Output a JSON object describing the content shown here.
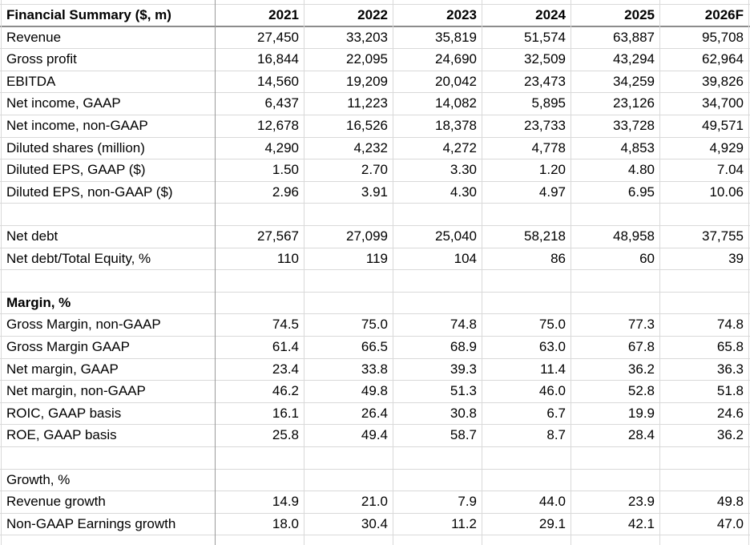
{
  "header": {
    "label": "Financial Summary ($, m)",
    "columns": [
      "2021",
      "2022",
      "2023",
      "2024",
      "2025",
      "2026F"
    ]
  },
  "sections": [
    {
      "rows": [
        {
          "label": "Revenue",
          "values": [
            "27,450",
            "33,203",
            "35,819",
            "51,574",
            "63,887",
            "95,708"
          ]
        },
        {
          "label": "Gross profit",
          "values": [
            "16,844",
            "22,095",
            "24,690",
            "32,509",
            "43,294",
            "62,964"
          ]
        },
        {
          "label": "EBITDA",
          "values": [
            "14,560",
            "19,209",
            "20,042",
            "23,473",
            "34,259",
            "39,826"
          ]
        },
        {
          "label": "Net income, GAAP",
          "values": [
            "6,437",
            "11,223",
            "14,082",
            "5,895",
            "23,126",
            "34,700"
          ]
        },
        {
          "label": "Net income, non-GAAP",
          "values": [
            "12,678",
            "16,526",
            "18,378",
            "23,733",
            "33,728",
            "49,571"
          ]
        },
        {
          "label": "Diluted shares (million)",
          "values": [
            "4,290",
            "4,232",
            "4,272",
            "4,778",
            "4,853",
            "4,929"
          ]
        },
        {
          "label": "Diluted EPS, GAAP ($)",
          "values": [
            "1.50",
            "2.70",
            "3.30",
            "1.20",
            "4.80",
            "7.04"
          ]
        },
        {
          "label": "Diluted EPS, non-GAAP ($)",
          "values": [
            "2.96",
            "3.91",
            "4.30",
            "4.97",
            "6.95",
            "10.06"
          ]
        }
      ]
    },
    {
      "rows": [
        {
          "label": "Net debt",
          "values": [
            "27,567",
            "27,099",
            "25,040",
            "58,218",
            "48,958",
            "37,755"
          ]
        },
        {
          "label": "Net debt/Total Equity, %",
          "values": [
            "110",
            "119",
            "104",
            "86",
            "60",
            "39"
          ]
        }
      ]
    },
    {
      "title": "Margin, %",
      "bold": true,
      "rows": [
        {
          "label": "Gross Margin, non-GAAP",
          "values": [
            "74.5",
            "75.0",
            "74.8",
            "75.0",
            "77.3",
            "74.8"
          ]
        },
        {
          "label": "Gross Margin GAAP",
          "values": [
            "61.4",
            "66.5",
            "68.9",
            "63.0",
            "67.8",
            "65.8"
          ]
        },
        {
          "label": "Net margin, GAAP",
          "values": [
            "23.4",
            "33.8",
            "39.3",
            "11.4",
            "36.2",
            "36.3"
          ]
        },
        {
          "label": "Net margin, non-GAAP",
          "values": [
            "46.2",
            "49.8",
            "51.3",
            "46.0",
            "52.8",
            "51.8"
          ]
        },
        {
          "label": "ROIC, GAAP basis",
          "values": [
            "16.1",
            "26.4",
            "30.8",
            "6.7",
            "19.9",
            "24.6"
          ]
        },
        {
          "label": "ROE, GAAP basis",
          "values": [
            "25.8",
            "49.4",
            "58.7",
            "8.7",
            "28.4",
            "36.2"
          ]
        }
      ]
    },
    {
      "title": "Growth, %",
      "bold": false,
      "rows": [
        {
          "label": "Revenue growth",
          "values": [
            "14.9",
            "21.0",
            "7.9",
            "44.0",
            "23.9",
            "49.8"
          ]
        },
        {
          "label": "Non-GAAP Earnings growth",
          "values": [
            "18.0",
            "30.4",
            "11.2",
            "29.1",
            "42.1",
            "47.0"
          ]
        }
      ]
    }
  ]
}
